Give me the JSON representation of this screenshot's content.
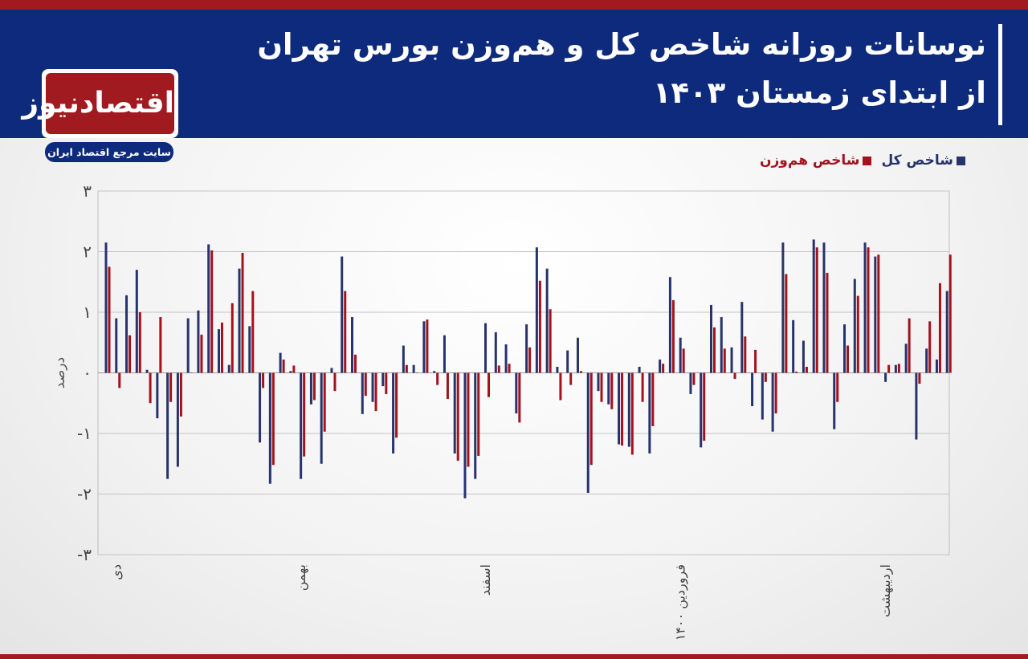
{
  "header": {
    "title_line1": "نوسانات روزانه شاخص کل و هم‌وزن بورس تهران",
    "title_line2": "از ابتدای زمستان ۱۴۰۳"
  },
  "logo": {
    "name": "اقتصادنیوز",
    "tagline": "سایت مرجع اقتصاد ایران"
  },
  "colors": {
    "header_bg": "#0e2a7c",
    "accent_red": "#a11a1f",
    "series_total": "#27336b",
    "series_equal": "#a3131e"
  },
  "chart_data": {
    "type": "bar",
    "title": "",
    "ylabel": "درصد",
    "xlabel": "",
    "ylim": [
      -3,
      3
    ],
    "yticks": [
      3,
      2,
      1,
      0,
      -1,
      -2,
      -3
    ],
    "ytick_labels": [
      "۳",
      "۲",
      "۱",
      "۰",
      "-۱",
      "-۲",
      "-۳"
    ],
    "grid": true,
    "legend_position": "top-right",
    "month_labels": [
      {
        "label": "دی",
        "index": 1
      },
      {
        "label": "بهمن",
        "index": 19
      },
      {
        "label": "اسفند",
        "index": 37
      },
      {
        "label": "فروردین ۱۴۰۰",
        "index": 56
      },
      {
        "label": "اردیبهشت",
        "index": 76
      }
    ],
    "series": [
      {
        "name": "شاخص کل",
        "values": [
          2.15,
          0.9,
          1.28,
          1.7,
          0.05,
          -0.75,
          -1.75,
          -1.55,
          0.9,
          1.03,
          2.12,
          0.72,
          0.13,
          1.72,
          0.77,
          -1.15,
          -1.83,
          0.33,
          0.03,
          -1.75,
          -0.52,
          -1.5,
          0.08,
          1.92,
          0.92,
          -0.68,
          -0.48,
          -0.22,
          -1.33,
          0.45,
          0.13,
          0.85,
          0.03,
          0.62,
          -1.33,
          -2.07,
          -1.75,
          0.82,
          0.67,
          0.47,
          -0.67,
          0.8,
          2.07,
          1.72,
          0.1,
          0.37,
          0.58,
          -1.98,
          -0.3,
          -0.52,
          -1.18,
          -1.22,
          0.1,
          -1.33,
          0.22,
          1.58,
          0.58,
          -0.35,
          -1.23,
          1.12,
          0.92,
          0.42,
          1.17,
          -0.55,
          -0.77,
          -0.97,
          2.15,
          0.87,
          0.53,
          2.2,
          2.15,
          -0.93,
          0.8,
          1.55,
          2.15,
          1.92,
          -0.15,
          0.13,
          0.48,
          -1.1,
          0.4,
          0.22,
          1.35
        ],
        "color": "#27336b"
      },
      {
        "name": "شاخص هم‌وزن",
        "values": [
          1.75,
          -0.25,
          0.62,
          1.0,
          -0.5,
          0.92,
          -0.48,
          -0.72,
          0.0,
          0.63,
          2.02,
          0.83,
          1.15,
          1.98,
          1.35,
          -0.25,
          -1.52,
          0.22,
          0.12,
          -1.38,
          -0.45,
          -0.97,
          -0.3,
          1.35,
          0.3,
          -0.38,
          -0.63,
          -0.35,
          -1.07,
          0.13,
          0.0,
          0.88,
          -0.2,
          -0.43,
          -1.45,
          -1.55,
          -1.37,
          -0.4,
          0.12,
          0.15,
          -0.82,
          0.42,
          1.52,
          1.05,
          -0.45,
          -0.2,
          0.03,
          -1.52,
          -0.48,
          -0.6,
          -1.2,
          -1.35,
          -0.48,
          -0.88,
          0.15,
          1.2,
          0.4,
          -0.2,
          -1.12,
          0.75,
          0.4,
          -0.1,
          0.6,
          0.38,
          -0.15,
          -0.67,
          1.63,
          0.02,
          0.1,
          2.07,
          1.65,
          -0.48,
          0.45,
          1.27,
          2.07,
          1.95,
          0.13,
          0.15,
          0.9,
          -0.18,
          0.85,
          1.48,
          1.95
        ],
        "color": "#a3131e"
      }
    ]
  }
}
